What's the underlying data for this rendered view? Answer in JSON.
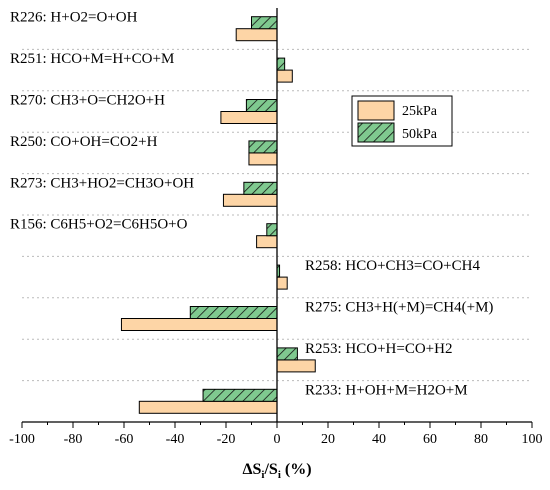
{
  "chart_data": {
    "type": "bar",
    "orientation": "horizontal",
    "categories": [
      "R226: H+O2=O+OH",
      "R251: HCO+M=H+CO+M",
      "R270: CH3+O=CH2O+H",
      "R250: CO+OH=CO2+H",
      "R273: CH3+HO2=CH3O+OH",
      "R156: C6H5+O2=C6H5O+O",
      "R258: HCO+CH3=CO+CH4",
      "R275: CH3+H(+M)=CH4(+M)",
      "R253: HCO+H=CO+H2",
      "R233: H+OH+M=H2O+M"
    ],
    "series": [
      {
        "name": "25kPa",
        "color": "#FDD5A6",
        "pattern": "solid",
        "values": [
          -16,
          6,
          -22,
          -11,
          -21,
          -8,
          4,
          -61,
          15,
          -54
        ]
      },
      {
        "name": "50kPa",
        "color": "#7FC98F",
        "pattern": "hatch",
        "values": [
          -10,
          3,
          -12,
          -11,
          -13,
          -4,
          1,
          -34,
          8,
          -29
        ]
      }
    ],
    "xlabel": "ΔSi/Si (%)",
    "xlabel_parts": {
      "delta": "ΔS",
      "sub1": "i",
      "slash": "/S",
      "sub2": "i",
      "unit": " (%)"
    },
    "xlim": [
      -100,
      100
    ],
    "xticks": [
      "-100",
      "-80",
      "-60",
      "-40",
      "-20",
      "0",
      "20",
      "40",
      "60",
      "80",
      "100"
    ],
    "label_side": [
      "left",
      "left",
      "left",
      "left",
      "left",
      "left",
      "right",
      "right",
      "right",
      "right"
    ],
    "legend_position": "upper-right",
    "grid": "dashed horizontal separators",
    "colors": {
      "c25": "#FDD5A6",
      "c50": "#7FC98F"
    }
  }
}
